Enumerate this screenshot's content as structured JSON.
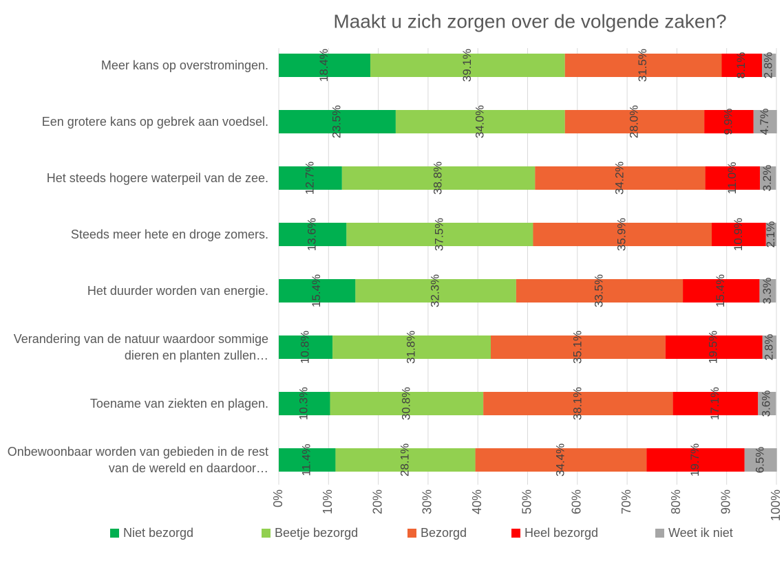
{
  "chart_data": {
    "type": "stacked-bar-horizontal",
    "title": "Maakt u zich zorgen over de volgende zaken?",
    "categories": [
      "Meer kans op overstromingen.",
      "Een grotere kans op gebrek aan voedsel.",
      "Het steeds hogere waterpeil van de zee.",
      "Steeds meer hete en droge zomers.",
      "Het duurder worden van energie.",
      "Verandering van de natuur waardoor sommige dieren en planten zullen…",
      "Toename van ziekten en plagen.",
      "Onbewoonbaar worden van gebieden in de rest van de wereld en daardoor…"
    ],
    "series": [
      {
        "name": "Niet bezorgd",
        "color": "#00b050",
        "values": [
          18.4,
          23.5,
          12.7,
          13.6,
          15.4,
          10.8,
          10.3,
          11.4
        ],
        "value_labels": [
          "18.4%",
          "23.5%",
          "12.7%",
          "13.6%",
          "15.4%",
          "10.8%",
          "10.3%",
          "11.4%"
        ]
      },
      {
        "name": "Beetje bezorgd",
        "color": "#92d050",
        "values": [
          39.1,
          34.0,
          38.8,
          37.5,
          32.3,
          31.8,
          30.8,
          28.1
        ],
        "value_labels": [
          "39.1%",
          "34.0%",
          "38.8%",
          "37.5%",
          "32.3%",
          "31.8%",
          "30.8%",
          "28.1%"
        ]
      },
      {
        "name": "Bezorgd",
        "color": "#ef6433",
        "values": [
          31.5,
          28.0,
          34.2,
          35.9,
          33.5,
          35.1,
          38.1,
          34.4
        ],
        "value_labels": [
          "31.5%",
          "28.0%",
          "34.2%",
          "35.9%",
          "33.5%",
          "35.1%",
          "38.1%",
          "34.4%"
        ]
      },
      {
        "name": "Heel bezorgd",
        "color": "#ff0000",
        "values": [
          8.1,
          9.9,
          11.0,
          10.9,
          15.4,
          19.5,
          17.1,
          19.7
        ],
        "value_labels": [
          "8.1%",
          "9.9%",
          "11.0%",
          "10.9%",
          "15.4%",
          "19.5%",
          "17.1%",
          "19.7%"
        ]
      },
      {
        "name": "Weet ik niet",
        "color": "#a6a6a6",
        "values": [
          2.8,
          4.7,
          3.2,
          2.1,
          3.3,
          2.8,
          3.6,
          6.5
        ],
        "value_labels": [
          "2.8%",
          "4.7%",
          "3.2%",
          "2.1%",
          "3.3%",
          "2.8%",
          "3.6%",
          "6.5%"
        ]
      }
    ],
    "xlim": [
      0,
      100
    ],
    "xticks": [
      {
        "value": 0,
        "label": "0%"
      },
      {
        "value": 10,
        "label": "10%"
      },
      {
        "value": 20,
        "label": "20%"
      },
      {
        "value": 30,
        "label": "30%"
      },
      {
        "value": 40,
        "label": "40%"
      },
      {
        "value": 50,
        "label": "50%"
      },
      {
        "value": 60,
        "label": "60%"
      },
      {
        "value": 70,
        "label": "70%"
      },
      {
        "value": 80,
        "label": "80%"
      },
      {
        "value": 90,
        "label": "90%"
      },
      {
        "value": 100,
        "label": "100%"
      }
    ],
    "grid": true,
    "legend": "bottom"
  }
}
